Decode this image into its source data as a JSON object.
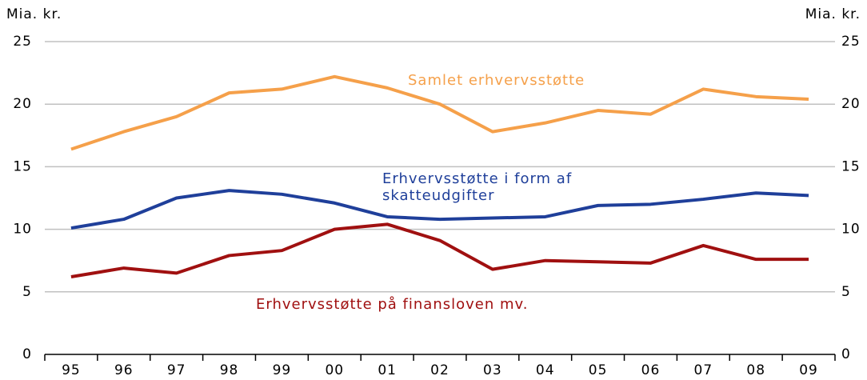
{
  "chart_data": {
    "type": "line",
    "ylabel": "Mia. kr.",
    "y2label": "Mia. kr.",
    "categories": [
      "95",
      "96",
      "97",
      "98",
      "99",
      "00",
      "01",
      "02",
      "03",
      "04",
      "05",
      "06",
      "07",
      "08",
      "09"
    ],
    "series": [
      {
        "name": "Samlet erhvervsstøtte",
        "color": "#f5a04a",
        "values": [
          16.4,
          17.8,
          19.0,
          20.9,
          21.2,
          22.2,
          21.3,
          20.0,
          17.8,
          18.5,
          19.5,
          19.2,
          21.2,
          20.6,
          20.4
        ]
      },
      {
        "name": "Erhvervsstøtte i form af skatteudgifter",
        "color": "#1f3f9a",
        "values": [
          10.1,
          10.8,
          12.5,
          13.1,
          12.8,
          12.1,
          11.0,
          10.8,
          10.9,
          11.0,
          11.9,
          12.0,
          12.4,
          12.9,
          12.7
        ]
      },
      {
        "name": "Erhvervsstøtte på finansloven mv.",
        "color": "#a01010",
        "values": [
          6.2,
          6.9,
          6.5,
          7.9,
          8.3,
          10.0,
          10.4,
          9.1,
          6.8,
          7.5,
          7.4,
          7.3,
          8.7,
          7.6,
          7.6
        ]
      }
    ],
    "ylim": [
      0,
      25
    ],
    "yticks": [
      0,
      5,
      10,
      15,
      20,
      25
    ],
    "y2lim": [
      0,
      25
    ],
    "y2ticks": [
      0,
      5,
      10,
      15,
      20,
      25
    ],
    "grid": true
  }
}
